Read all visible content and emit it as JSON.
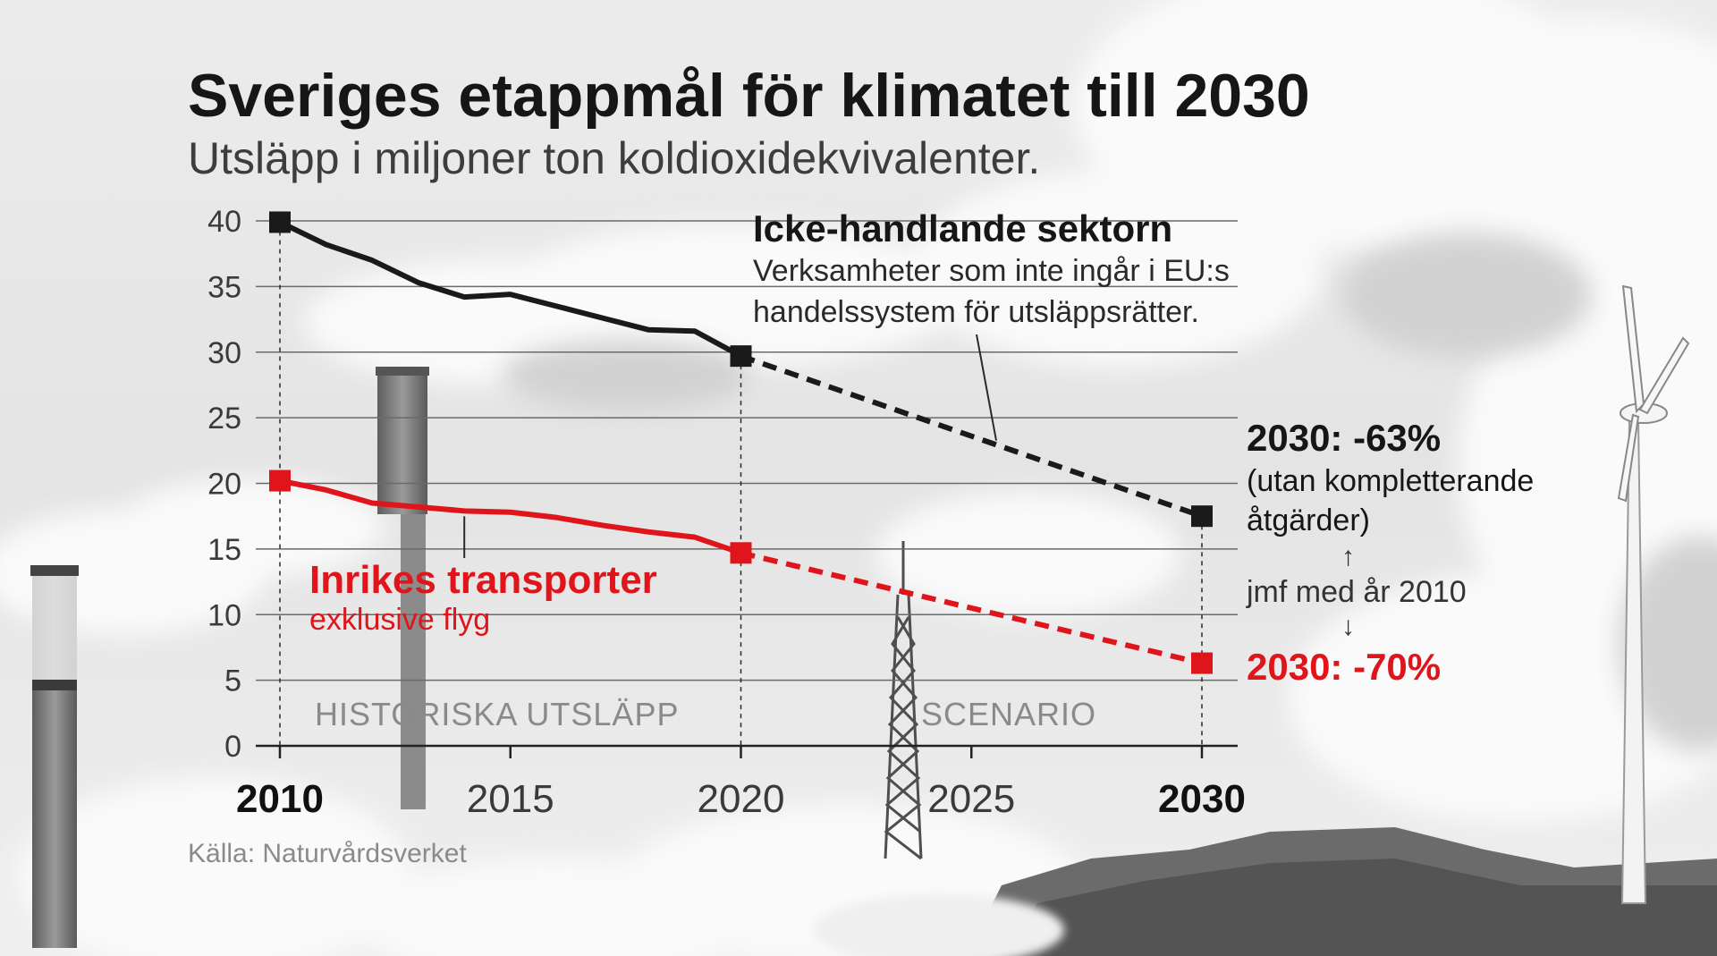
{
  "chart_data": {
    "type": "line",
    "title": "Sveriges etappmål för klimatet till 2030",
    "subtitle": "Utsläpp i miljoner ton koldioxidekvivalenter.",
    "x_ticks": [
      2010,
      2015,
      2020,
      2025,
      2030
    ],
    "x_ticks_bold": [
      2010,
      2030
    ],
    "xlim": [
      2010,
      2030
    ],
    "y_ticks": [
      0,
      5,
      10,
      15,
      20,
      25,
      30,
      35,
      40
    ],
    "ylim": [
      0,
      40
    ],
    "grid": true,
    "series": [
      {
        "name": "Icke-handlande sektorn",
        "description": "Verksamheter som inte ingår i EU:s handelssystem för utsläppsrätter.",
        "color": "#1a1a1a",
        "historical": {
          "x": [
            2010,
            2011,
            2012,
            2013,
            2014,
            2015,
            2016,
            2017,
            2018,
            2019,
            2020
          ],
          "y": [
            39.9,
            38.2,
            37.0,
            35.3,
            34.2,
            34.4,
            33.5,
            32.6,
            31.7,
            31.6,
            29.7
          ]
        },
        "scenario": {
          "x": [
            2020,
            2030
          ],
          "y": [
            29.7,
            17.5
          ]
        },
        "target_label": "2030: -63%",
        "target_note": "(utan kompletterande åtgärder)"
      },
      {
        "name": "Inrikes transporter",
        "description": "exklusive flyg",
        "color": "#e0151b",
        "historical": {
          "x": [
            2010,
            2011,
            2012,
            2013,
            2014,
            2015,
            2016,
            2017,
            2018,
            2019,
            2020
          ],
          "y": [
            20.2,
            19.5,
            18.5,
            18.2,
            17.9,
            17.8,
            17.4,
            16.8,
            16.3,
            15.9,
            14.7
          ]
        },
        "scenario": {
          "x": [
            2020,
            2030
          ],
          "y": [
            14.7,
            6.3
          ]
        },
        "target_label": "2030: -70%"
      }
    ],
    "annotations": {
      "compare": "jmf med år 2010",
      "arrow_up": "↑",
      "arrow_down": "↓",
      "historical_label": "HISTORISKA UTSLÄPP",
      "scenario_label": "SCENARIO"
    },
    "source": "Källa: Naturvårdsverket"
  },
  "colors": {
    "black": "#1a1a1a",
    "red": "#e0151b",
    "grid": "#6a6a6a"
  }
}
